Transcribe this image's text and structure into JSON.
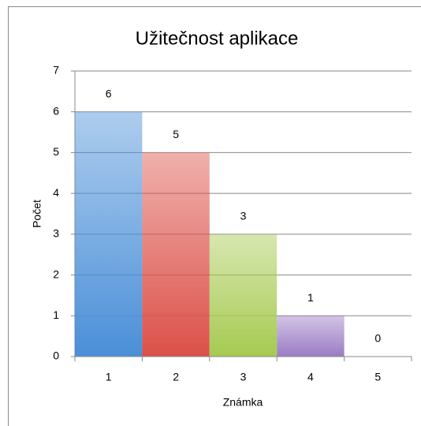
{
  "chart_data": {
    "type": "bar",
    "title": "Užitečnost aplikace",
    "x_label": "Známka",
    "y_label": "Počet",
    "categories": [
      "1",
      "2",
      "3",
      "4",
      "5"
    ],
    "values": [
      6,
      5,
      3,
      1,
      0
    ],
    "colors": [
      "#4a8fd8",
      "#dc5048",
      "#a6ca50",
      "#9a7cc4",
      "#4bacc6"
    ],
    "ylim": [
      0,
      7
    ],
    "yticks": [
      0,
      1,
      2,
      3,
      4,
      5,
      6,
      7
    ],
    "grid": true
  }
}
